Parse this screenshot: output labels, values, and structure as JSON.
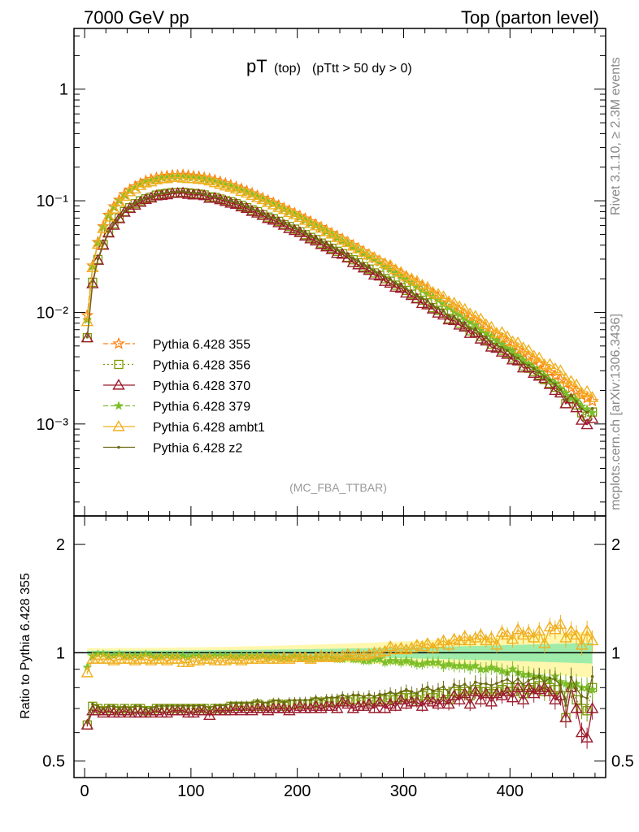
{
  "header": {
    "left": "7000 GeV pp",
    "right": "Top (parton level)"
  },
  "side": {
    "rivet": "Rivet 3.1.10, ≥ 2.3M events",
    "mcplots": "mcplots.cern.ch [arXiv:1306.3436]"
  },
  "plot": {
    "title_main": "pT",
    "title_sub": "(top)",
    "title_cut": "(pTtt > 50 dy > 0)",
    "analysis": "(MC_FBA_TTBAR)",
    "ratio_ylabel": "Ratio to Pythia 6.428 355"
  },
  "chart_data": {
    "type": "line",
    "x_ticks": [
      "0",
      "100",
      "200",
      "300",
      "400"
    ],
    "y_ticks_main": [
      "10⁻³",
      "10⁻²",
      "10⁻¹",
      "1"
    ],
    "y_ticks_ratio": [
      "0.5",
      "1",
      "2"
    ],
    "xlim": [
      -10,
      490
    ],
    "ylim_main": [
      0.00015,
      3.5
    ],
    "ylim_ratio": [
      0.45,
      2.4
    ],
    "y_log": true,
    "legend_position": "bottom-left",
    "x": [
      2.5,
      7.5,
      12.5,
      17.5,
      22.5,
      27.5,
      32.5,
      37.5,
      42.5,
      47.5,
      52.5,
      57.5,
      62.5,
      67.5,
      72.5,
      77.5,
      82.5,
      87.5,
      92.5,
      97.5,
      102.5,
      107.5,
      112.5,
      117.5,
      122.5,
      127.5,
      132.5,
      137.5,
      142.5,
      147.5,
      152.5,
      157.5,
      162.5,
      167.5,
      172.5,
      177.5,
      182.5,
      187.5,
      192.5,
      197.5,
      202.5,
      207.5,
      212.5,
      217.5,
      222.5,
      227.5,
      232.5,
      237.5,
      242.5,
      247.5,
      252.5,
      257.5,
      262.5,
      267.5,
      272.5,
      277.5,
      282.5,
      287.5,
      292.5,
      297.5,
      302.5,
      307.5,
      312.5,
      317.5,
      322.5,
      327.5,
      332.5,
      337.5,
      342.5,
      347.5,
      352.5,
      357.5,
      362.5,
      367.5,
      372.5,
      377.5,
      382.5,
      387.5,
      392.5,
      397.5,
      402.5,
      407.5,
      412.5,
      417.5,
      422.5,
      427.5,
      432.5,
      437.5,
      442.5,
      447.5,
      452.5,
      457.5,
      462.5,
      467.5,
      472.5,
      477.5
    ],
    "reference": {
      "name": "Pythia 6.428 355",
      "values": [
        0.0094,
        0.0262,
        0.0425,
        0.0588,
        0.0746,
        0.0888,
        0.1016,
        0.1144,
        0.1255,
        0.1343,
        0.1427,
        0.1508,
        0.1557,
        0.1605,
        0.164,
        0.1665,
        0.1686,
        0.169,
        0.17,
        0.168,
        0.166,
        0.164,
        0.161,
        0.157,
        0.153,
        0.148,
        0.143,
        0.138,
        0.133,
        0.128,
        0.1222,
        0.1165,
        0.111,
        0.1057,
        0.1006,
        0.0958,
        0.0909,
        0.0862,
        0.0817,
        0.0774,
        0.0731,
        0.069,
        0.0652,
        0.0615,
        0.058,
        0.0545,
        0.0514,
        0.0483,
        0.0454,
        0.0427,
        0.04,
        0.0376,
        0.0352,
        0.033,
        0.0309,
        0.029,
        0.0271,
        0.0254,
        0.0237,
        0.0222,
        0.0207,
        0.0194,
        0.0181,
        0.0169,
        0.0158,
        0.0147,
        0.0137,
        0.0128,
        0.0119,
        0.0111,
        0.0104,
        0.0096,
        0.009,
        0.0084,
        0.0078,
        0.0072,
        0.0067,
        0.0062,
        0.0058,
        0.0054,
        0.005,
        0.0046,
        0.0043,
        0.004,
        0.0037,
        0.0034,
        0.0032,
        0.0029,
        0.0027,
        0.0025,
        0.0023,
        0.0021,
        0.002,
        0.0018,
        0.0017,
        0.0016
      ]
    },
    "series": [
      {
        "name": "Pythia 6.428 355",
        "color": "#ff7f0e",
        "marker": "star",
        "dash": "6,3"
      },
      {
        "name": "Pythia 6.428 356",
        "color": "#7a9a00",
        "marker": "square",
        "dash": "2,3"
      },
      {
        "name": "Pythia 6.428 370",
        "color": "#9b1c2e",
        "marker": "triangle",
        "dash": ""
      },
      {
        "name": "Pythia 6.428 379",
        "color": "#7cbf2a",
        "marker": "star-small",
        "dash": "6,3"
      },
      {
        "name": "Pythia 6.428 ambt1",
        "color": "#f0b020",
        "marker": "triangle",
        "dash": ""
      },
      {
        "name": "Pythia 6.428 z2",
        "color": "#6b6b14",
        "marker": "dot",
        "dash": ""
      }
    ],
    "ratio_series": {
      "Pythia 6.428 356": [
        0.63,
        0.71,
        0.7,
        0.69,
        0.7,
        0.7,
        0.69,
        0.7,
        0.69,
        0.7,
        0.7,
        0.69,
        0.69,
        0.7,
        0.7,
        0.7,
        0.7,
        0.7,
        0.7,
        0.7,
        0.7,
        0.7,
        0.7,
        0.69,
        0.7,
        0.7,
        0.7,
        0.71,
        0.71,
        0.71,
        0.71,
        0.71,
        0.72,
        0.71,
        0.71,
        0.72,
        0.72,
        0.71,
        0.72,
        0.72,
        0.72,
        0.72,
        0.72,
        0.73,
        0.72,
        0.73,
        0.73,
        0.73,
        0.74,
        0.73,
        0.74,
        0.74,
        0.73,
        0.74,
        0.73,
        0.74,
        0.74,
        0.75,
        0.74,
        0.75,
        0.76,
        0.75,
        0.74,
        0.76,
        0.77,
        0.75,
        0.76,
        0.77,
        0.74,
        0.78,
        0.77,
        0.78,
        0.76,
        0.79,
        0.78,
        0.78,
        0.77,
        0.78,
        0.79,
        0.8,
        0.78,
        0.8,
        0.77,
        0.79,
        0.8,
        0.81,
        0.78,
        0.8,
        0.79,
        0.76,
        0.66,
        0.8,
        0.74,
        0.7,
        0.69,
        0.8
      ],
      "Pythia 6.428 370": [
        0.63,
        0.69,
        0.69,
        0.68,
        0.69,
        0.68,
        0.68,
        0.69,
        0.68,
        0.68,
        0.68,
        0.68,
        0.68,
        0.69,
        0.68,
        0.68,
        0.69,
        0.69,
        0.69,
        0.68,
        0.68,
        0.69,
        0.69,
        0.67,
        0.69,
        0.69,
        0.69,
        0.69,
        0.7,
        0.69,
        0.7,
        0.69,
        0.7,
        0.7,
        0.69,
        0.7,
        0.7,
        0.7,
        0.69,
        0.7,
        0.71,
        0.7,
        0.7,
        0.71,
        0.7,
        0.71,
        0.71,
        0.7,
        0.73,
        0.72,
        0.7,
        0.71,
        0.71,
        0.72,
        0.7,
        0.73,
        0.7,
        0.72,
        0.71,
        0.74,
        0.72,
        0.73,
        0.73,
        0.71,
        0.74,
        0.73,
        0.72,
        0.74,
        0.72,
        0.76,
        0.74,
        0.77,
        0.72,
        0.78,
        0.74,
        0.77,
        0.73,
        0.77,
        0.76,
        0.78,
        0.75,
        0.8,
        0.74,
        0.8,
        0.77,
        0.79,
        0.8,
        0.78,
        0.74,
        0.76,
        0.66,
        0.8,
        0.7,
        0.6,
        0.58,
        0.7
      ],
      "Pythia 6.428 379": [
        0.91,
        0.98,
        0.99,
        0.99,
        0.98,
        0.98,
        0.99,
        0.98,
        0.98,
        0.98,
        0.98,
        0.99,
        0.98,
        0.97,
        0.98,
        0.98,
        0.98,
        0.98,
        0.98,
        0.97,
        0.98,
        0.98,
        0.97,
        0.98,
        0.98,
        0.98,
        0.98,
        0.98,
        0.97,
        0.98,
        0.98,
        0.98,
        0.98,
        0.98,
        0.97,
        0.98,
        0.97,
        0.97,
        0.97,
        0.98,
        0.97,
        0.97,
        0.96,
        0.97,
        0.97,
        0.97,
        0.97,
        0.96,
        0.96,
        0.97,
        0.96,
        0.96,
        0.95,
        0.95,
        0.96,
        0.96,
        0.94,
        0.95,
        0.95,
        0.94,
        0.95,
        0.94,
        0.93,
        0.93,
        0.94,
        0.94,
        0.94,
        0.92,
        0.93,
        0.92,
        0.92,
        0.92,
        0.91,
        0.92,
        0.9,
        0.9,
        0.91,
        0.9,
        0.89,
        0.88,
        0.9,
        0.88,
        0.87,
        0.87,
        0.86,
        0.86,
        0.85,
        0.84,
        0.86,
        0.83,
        0.82,
        0.81,
        0.82,
        0.8,
        0.8,
        0.79
      ],
      "Pythia 6.428 ambt1": [
        0.88,
        0.96,
        0.96,
        0.96,
        0.96,
        0.95,
        0.96,
        0.96,
        0.96,
        0.95,
        0.96,
        0.96,
        0.95,
        0.96,
        0.96,
        0.95,
        0.96,
        0.96,
        0.94,
        0.94,
        0.95,
        0.95,
        0.96,
        0.96,
        0.95,
        0.95,
        0.95,
        0.96,
        0.96,
        0.95,
        0.96,
        0.96,
        0.96,
        0.97,
        0.96,
        0.96,
        0.96,
        0.97,
        0.96,
        0.97,
        0.97,
        0.97,
        0.96,
        0.97,
        0.98,
        0.97,
        0.98,
        0.97,
        0.98,
        0.99,
        0.98,
        0.99,
        0.98,
        0.99,
        1.0,
        1.0,
        1.01,
        1.04,
        1.02,
        1.03,
        1.02,
        1.03,
        1.05,
        1.04,
        1.06,
        1.03,
        1.06,
        1.08,
        1.05,
        1.09,
        1.08,
        1.11,
        1.08,
        1.1,
        1.12,
        1.08,
        1.1,
        1.05,
        1.14,
        1.12,
        1.09,
        1.16,
        1.12,
        1.14,
        1.1,
        1.15,
        1.06,
        1.18,
        1.16,
        1.2,
        1.1,
        1.15,
        1.12,
        1.05,
        1.15,
        1.08
      ]
    }
  },
  "legend": [
    {
      "name": "Pythia 6.428 355"
    },
    {
      "name": "Pythia 6.428 356"
    },
    {
      "name": "Pythia 6.428 370"
    },
    {
      "name": "Pythia 6.428 379"
    },
    {
      "name": "Pythia 6.428 ambt1"
    },
    {
      "name": "Pythia 6.428 z2"
    }
  ]
}
